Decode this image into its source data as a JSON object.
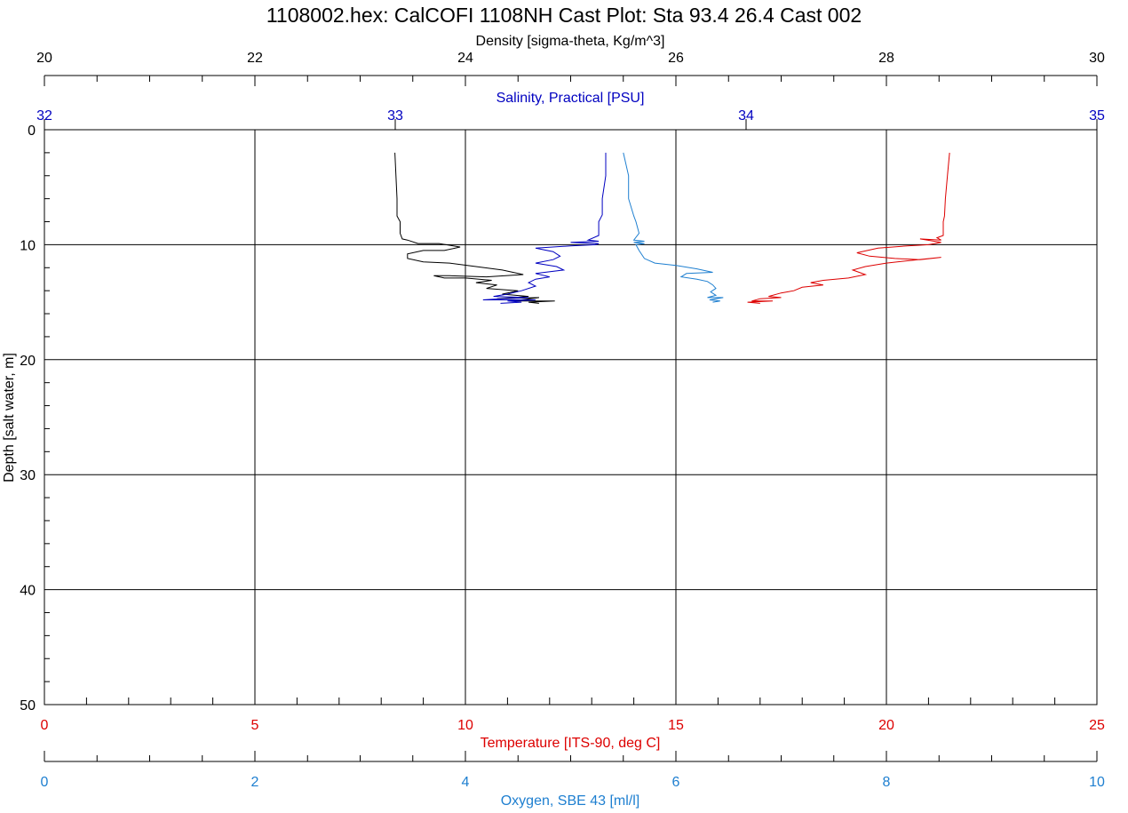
{
  "chart_data": {
    "type": "line",
    "title": "1108002.hex: CalCOFI 1108NH Cast Plot: Sta 93.4 26.4 Cast 002",
    "grid": true,
    "y_axis": {
      "label": "Depth [salt water, m]",
      "range": [
        0,
        50
      ],
      "inverted": true,
      "ticks": [
        0,
        10,
        20,
        30,
        40,
        50
      ],
      "tick_labels": [
        "0",
        "10",
        "20",
        "30",
        "40",
        "50"
      ]
    },
    "x_axes": [
      {
        "id": "density",
        "label": "Density [sigma-theta, Kg/m^3]",
        "position": "top",
        "color": "#000000",
        "range": [
          20,
          30
        ],
        "ticks": [
          20,
          22,
          24,
          26,
          28,
          30
        ],
        "tick_labels": [
          "20",
          "22",
          "24",
          "26",
          "28",
          "30"
        ]
      },
      {
        "id": "salinity",
        "label": "Salinity, Practical [PSU]",
        "position": "top",
        "color": "#0000c0",
        "range": [
          32,
          35
        ],
        "ticks": [
          32,
          33,
          34,
          35
        ],
        "tick_labels": [
          "32",
          "33",
          "34",
          "35"
        ]
      },
      {
        "id": "temperature",
        "label": "Temperature [ITS-90, deg C]",
        "position": "bottom",
        "color": "#dd0000",
        "range": [
          0,
          25
        ],
        "ticks": [
          0,
          5,
          10,
          15,
          20,
          25
        ],
        "tick_labels": [
          "0",
          "5",
          "10",
          "15",
          "20",
          "25"
        ]
      },
      {
        "id": "oxygen",
        "label": "Oxygen, SBE 43 [ml/l]",
        "position": "bottom",
        "color": "#1e7fd0",
        "range": [
          0,
          10
        ],
        "ticks": [
          0,
          2,
          4,
          6,
          8,
          10
        ],
        "tick_labels": [
          "0",
          "2",
          "4",
          "6",
          "8",
          "10"
        ]
      }
    ],
    "series": [
      {
        "axis": "density",
        "color": "#000000",
        "points": [
          [
            23.33,
            2.0
          ],
          [
            23.34,
            4.0
          ],
          [
            23.35,
            6.0
          ],
          [
            23.35,
            7.5
          ],
          [
            23.38,
            8.0
          ],
          [
            23.38,
            9.0
          ],
          [
            23.4,
            9.5
          ],
          [
            23.45,
            9.6
          ],
          [
            23.55,
            9.9
          ],
          [
            23.75,
            9.9
          ],
          [
            23.95,
            10.2
          ],
          [
            23.8,
            10.5
          ],
          [
            23.6,
            10.5
          ],
          [
            23.45,
            10.8
          ],
          [
            23.45,
            11.2
          ],
          [
            23.6,
            11.5
          ],
          [
            23.85,
            11.6
          ],
          [
            24.1,
            11.9
          ],
          [
            24.35,
            12.2
          ],
          [
            24.55,
            12.6
          ],
          [
            24.2,
            12.8
          ],
          [
            23.85,
            12.7
          ],
          [
            23.7,
            12.7
          ],
          [
            23.8,
            12.9
          ],
          [
            24.0,
            12.9
          ],
          [
            24.25,
            13.1
          ],
          [
            24.1,
            13.3
          ],
          [
            24.3,
            13.5
          ],
          [
            24.2,
            13.8
          ],
          [
            24.5,
            14.0
          ],
          [
            24.35,
            14.3
          ],
          [
            24.6,
            14.5
          ],
          [
            24.3,
            14.7
          ],
          [
            24.7,
            14.6
          ],
          [
            24.45,
            14.9
          ],
          [
            24.85,
            14.9
          ],
          [
            24.6,
            15.0
          ],
          [
            24.7,
            15.1
          ]
        ]
      },
      {
        "axis": "salinity",
        "color": "#0000c0",
        "points": [
          [
            33.6,
            2.0
          ],
          [
            33.6,
            4.0
          ],
          [
            33.59,
            6.0
          ],
          [
            33.59,
            7.4
          ],
          [
            33.58,
            8.0
          ],
          [
            33.58,
            9.2
          ],
          [
            33.55,
            9.6
          ],
          [
            33.58,
            9.7
          ],
          [
            33.5,
            9.8
          ],
          [
            33.58,
            9.9
          ],
          [
            33.57,
            10.0
          ],
          [
            33.5,
            10.1
          ],
          [
            33.4,
            10.3
          ],
          [
            33.45,
            10.6
          ],
          [
            33.47,
            11.0
          ],
          [
            33.45,
            11.3
          ],
          [
            33.4,
            11.6
          ],
          [
            33.46,
            11.9
          ],
          [
            33.48,
            12.2
          ],
          [
            33.4,
            12.5
          ],
          [
            33.44,
            12.8
          ],
          [
            33.4,
            13.0
          ],
          [
            33.38,
            13.3
          ],
          [
            33.4,
            13.6
          ],
          [
            33.36,
            14.0
          ],
          [
            33.32,
            14.3
          ],
          [
            33.28,
            14.5
          ],
          [
            33.38,
            14.6
          ],
          [
            33.3,
            14.7
          ],
          [
            33.25,
            14.8
          ],
          [
            33.4,
            14.8
          ],
          [
            33.32,
            14.9
          ],
          [
            33.36,
            15.0
          ],
          [
            33.3,
            15.1
          ]
        ]
      },
      {
        "axis": "temperature",
        "color": "#dd0000",
        "points": [
          [
            21.5,
            2.0
          ],
          [
            21.45,
            4.0
          ],
          [
            21.4,
            6.0
          ],
          [
            21.38,
            7.5
          ],
          [
            21.35,
            8.0
          ],
          [
            21.35,
            9.2
          ],
          [
            21.2,
            9.4
          ],
          [
            21.3,
            9.6
          ],
          [
            20.8,
            9.5
          ],
          [
            21.3,
            9.8
          ],
          [
            21.0,
            10.0
          ],
          [
            20.5,
            10.1
          ],
          [
            19.8,
            10.3
          ],
          [
            19.3,
            10.7
          ],
          [
            19.6,
            11.0
          ],
          [
            20.2,
            11.2
          ],
          [
            20.8,
            11.3
          ],
          [
            21.3,
            11.1
          ],
          [
            20.5,
            11.4
          ],
          [
            20.0,
            11.6
          ],
          [
            19.5,
            11.9
          ],
          [
            19.2,
            12.2
          ],
          [
            19.5,
            12.6
          ],
          [
            19.1,
            12.9
          ],
          [
            18.5,
            13.1
          ],
          [
            18.2,
            13.3
          ],
          [
            18.5,
            13.5
          ],
          [
            18.0,
            13.7
          ],
          [
            17.8,
            14.0
          ],
          [
            17.5,
            14.2
          ],
          [
            17.2,
            14.5
          ],
          [
            17.5,
            14.6
          ],
          [
            17.0,
            14.7
          ],
          [
            16.8,
            14.9
          ],
          [
            17.3,
            14.9
          ],
          [
            16.7,
            15.0
          ],
          [
            17.0,
            15.1
          ]
        ]
      },
      {
        "axis": "oxygen",
        "color": "#1e7fd0",
        "points": [
          [
            5.5,
            2.0
          ],
          [
            5.55,
            4.0
          ],
          [
            5.55,
            6.0
          ],
          [
            5.6,
            7.5
          ],
          [
            5.62,
            8.0
          ],
          [
            5.65,
            9.0
          ],
          [
            5.6,
            9.6
          ],
          [
            5.7,
            9.7
          ],
          [
            5.6,
            9.8
          ],
          [
            5.7,
            9.9
          ],
          [
            5.62,
            10.0
          ],
          [
            5.65,
            10.5
          ],
          [
            5.7,
            11.2
          ],
          [
            5.8,
            11.6
          ],
          [
            6.0,
            11.8
          ],
          [
            6.2,
            12.1
          ],
          [
            6.35,
            12.4
          ],
          [
            6.1,
            12.5
          ],
          [
            6.05,
            12.8
          ],
          [
            6.2,
            13.0
          ],
          [
            6.3,
            13.2
          ],
          [
            6.35,
            13.5
          ],
          [
            6.38,
            13.8
          ],
          [
            6.33,
            14.1
          ],
          [
            6.38,
            14.4
          ],
          [
            6.3,
            14.6
          ],
          [
            6.45,
            14.6
          ],
          [
            6.32,
            14.8
          ],
          [
            6.42,
            14.9
          ],
          [
            6.35,
            15.0
          ]
        ]
      }
    ]
  }
}
